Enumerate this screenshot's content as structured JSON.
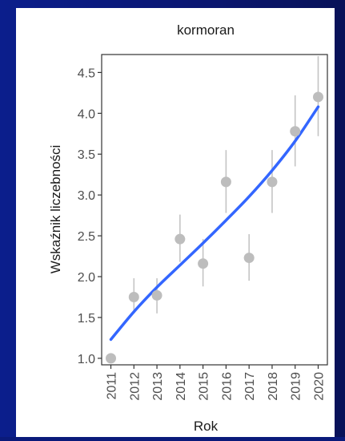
{
  "chart_data": {
    "type": "scatter",
    "title": "kormoran",
    "xlabel": "Rok",
    "ylabel": "Wskaźnik liczebności",
    "x": [
      2011,
      2012,
      2013,
      2014,
      2015,
      2016,
      2017,
      2018,
      2019,
      2020
    ],
    "x_tick_labels": [
      "2011",
      "2012",
      "2013",
      "2014",
      "2015",
      "2016",
      "2017",
      "2018",
      "2019",
      "2020"
    ],
    "xlim": [
      2010.6,
      2020.4
    ],
    "ylim": [
      0.92,
      4.72
    ],
    "y_ticks": [
      1.0,
      1.5,
      2.0,
      2.5,
      3.0,
      3.5,
      4.0,
      4.5
    ],
    "y_tick_labels": [
      "1.0",
      "1.5",
      "2.0",
      "2.5",
      "3.0",
      "3.5",
      "4.0",
      "4.5"
    ],
    "series": [
      {
        "values": [
          1.0,
          1.75,
          1.77,
          2.46,
          2.16,
          3.16,
          2.23,
          3.16,
          3.78,
          4.2
        ],
        "lower": [
          1.0,
          1.55,
          1.55,
          2.18,
          1.88,
          2.78,
          1.95,
          2.78,
          3.35,
          3.72
        ],
        "upper": [
          1.0,
          1.98,
          1.98,
          2.76,
          2.46,
          3.55,
          2.52,
          3.55,
          4.22,
          4.7
        ],
        "color": "#bdbdbd",
        "errorbar_color": "#c4c4c4"
      }
    ],
    "trend": {
      "type": "smooth",
      "color": "#3366ff",
      "x": [
        2011,
        2012,
        2013,
        2014,
        2015,
        2016,
        2017,
        2018,
        2019,
        2020
      ],
      "values": [
        1.23,
        1.57,
        1.87,
        2.14,
        2.41,
        2.69,
        2.98,
        3.3,
        3.66,
        4.08
      ]
    },
    "grid": false,
    "legend": "none"
  }
}
